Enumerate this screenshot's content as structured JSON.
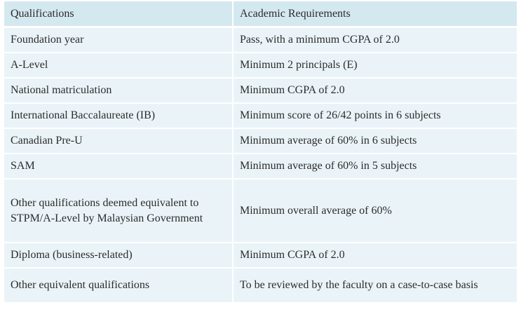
{
  "table": {
    "headers": [
      "Qualifications",
      "Academic Requirements"
    ],
    "rows": [
      [
        "Foundation year",
        "Pass, with a minimum CGPA of 2.0"
      ],
      [
        "A-Level",
        "Minimum 2 principals (E)"
      ],
      [
        "National matriculation",
        "Minimum CGPA of 2.0"
      ],
      [
        "International Baccalaureate (IB)",
        "Minimum score of 26/42 points in 6 subjects"
      ],
      [
        "Canadian Pre-U",
        "Minimum average of 60% in 6 subjects"
      ],
      [
        "SAM",
        "Minimum average of 60% in 5 subjects"
      ],
      [
        "Other qualifications deemed equivalent to STPM/A-Level by Malaysian Government",
        "Minimum overall average of 60%"
      ],
      [
        "Diploma (business-related)",
        "Minimum CGPA of 2.0"
      ],
      [
        "Other equivalent qualifications",
        "To be reviewed by the faculty on a case-to-case basis"
      ]
    ]
  }
}
